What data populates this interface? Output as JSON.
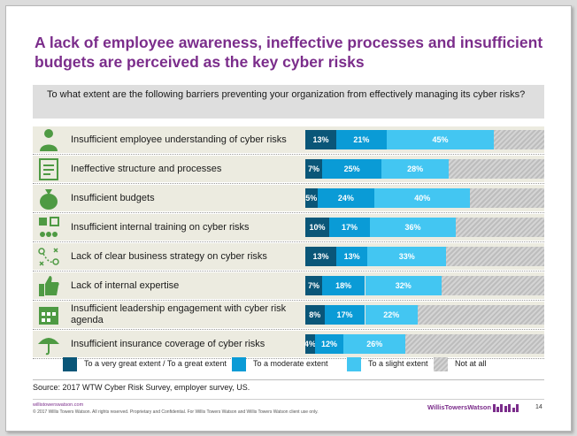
{
  "title": "A lack of employee awareness, ineffective processes and insufficient budgets are perceived as the key cyber risks",
  "question": "To what extent are the following barriers preventing your organization from effectively managing its cyber risks?",
  "colors": {
    "great": "#0a5678",
    "moderate": "#0a9bd6",
    "slight": "#43c6f2",
    "not_at_all": "#c8c8c8",
    "title": "#7b2d8b",
    "icon": "#4e9a43"
  },
  "chart_data": {
    "type": "bar",
    "orientation": "horizontal",
    "stacked": true,
    "categories": [
      "Insufficient employee understanding of cyber risks",
      "Ineffective structure and processes",
      "Insufficient budgets",
      "Insufficient internal training on cyber risks",
      "Lack of clear business strategy on cyber risks",
      "Lack of internal expertise",
      "Insufficient leadership engagement with cyber risk agenda",
      "Insufficient insurance coverage of cyber risks"
    ],
    "series": [
      {
        "name": "To a very great extent / To a great extent",
        "values": [
          13,
          7,
          5,
          10,
          13,
          7,
          8,
          4
        ],
        "labels": [
          "13%",
          "7%",
          "5%",
          "10%",
          "13%",
          "7%",
          "8%",
          "4%"
        ]
      },
      {
        "name": "To a moderate extent",
        "values": [
          21,
          25,
          24,
          17,
          13,
          18,
          17,
          12
        ],
        "labels": [
          "21%",
          "25%",
          "24%",
          "17%",
          "13%",
          "18%",
          "17%",
          "12%"
        ]
      },
      {
        "name": "To a slight extent",
        "values": [
          45,
          28,
          40,
          36,
          33,
          32,
          22,
          26
        ],
        "labels": [
          "45%",
          "28%",
          "40%",
          "36%",
          "33%",
          "32%",
          "22%",
          "26%"
        ]
      },
      {
        "name": "Not at all",
        "values": [
          21,
          40,
          31,
          37,
          41,
          43,
          53,
          58
        ]
      }
    ],
    "xlim": [
      0,
      100
    ],
    "legend_position": "bottom"
  },
  "rows": [
    {
      "label": "Insufficient employee understanding of cyber risks",
      "icon": "person-icon"
    },
    {
      "label": "Ineffective structure and processes",
      "icon": "checklist-icon"
    },
    {
      "label": "Insufficient budgets",
      "icon": "money-bag-icon"
    },
    {
      "label": "Insufficient internal training on cyber risks",
      "icon": "training-icon"
    },
    {
      "label": "Lack of clear business strategy on cyber risks",
      "icon": "strategy-icon"
    },
    {
      "label": "Lack of internal expertise",
      "icon": "thumbs-up-icon"
    },
    {
      "label": "Insufficient leadership engagement with cyber risk agenda",
      "icon": "calendar-icon"
    },
    {
      "label": "Insufficient insurance coverage of cyber risks",
      "icon": "umbrella-icon"
    }
  ],
  "legend": {
    "great": "To a very great extent / To a great extent",
    "moderate": "To a moderate extent",
    "slight": "To a slight extent",
    "not_at_all": "Not at all"
  },
  "source": "Source: 2017 WTW Cyber Risk Survey, employer survey, US.",
  "footer": {
    "url": "willistowerswatson.com",
    "copyright": "© 2017 Willis Towers Watson. All rights reserved. Proprietary and Confidential. For Willis Towers Watson and Willis Towers Watson client use only.",
    "brand": "WillisTowersWatson",
    "page": "14"
  }
}
